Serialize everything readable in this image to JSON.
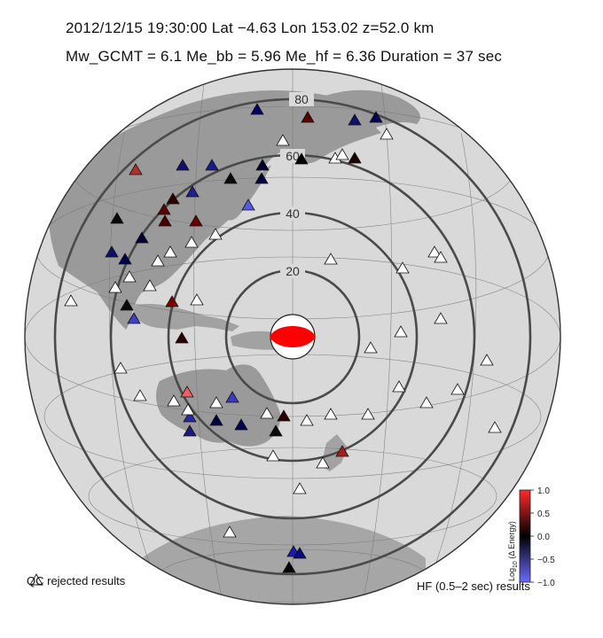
{
  "header": {
    "line1": "2012/12/15  19:30:00   Lat −4.63    Lon 153.02   z=52.0 km",
    "line2": "Mw_GCMT = 6.1   Me_bb = 5.96   Me_hf = 6.36   Duration = 37 sec"
  },
  "map": {
    "projection": "azimuthal equidistant",
    "center": {
      "lat": -4.63,
      "lon": 153.02
    },
    "distance_rings_deg": [
      {
        "label": "20",
        "value": 20
      },
      {
        "label": "40",
        "value": 40
      },
      {
        "label": "60",
        "value": 60
      },
      {
        "label": "80",
        "value": 80
      }
    ],
    "colors": {
      "land": "#8f8f8f",
      "ocean": "#d6d6d6",
      "ring": "#4a4a4a",
      "beachball": "#ff0000"
    }
  },
  "legend": {
    "qc_label": "QC rejected results",
    "hf_label": "HF (0.5–2 sec) results",
    "colorbar_title": "Log",
    "colorbar_sub": "10",
    "colorbar_title_rest": " (Δ Energy)",
    "colorbar_ticks": [
      "1.0",
      "0.5",
      "0.0",
      "−0.5",
      "−1.0"
    ],
    "colorbar_range": [
      -1.0,
      1.0
    ]
  }
}
